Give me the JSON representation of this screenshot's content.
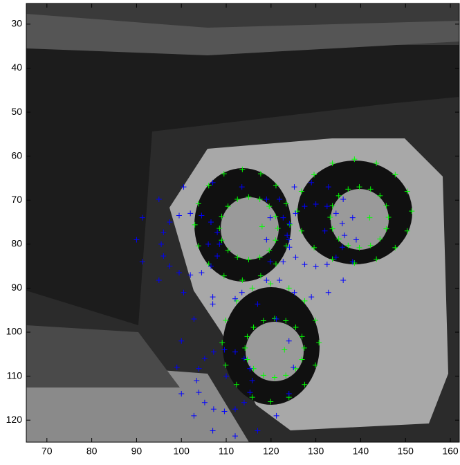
{
  "chart_data": {
    "type": "scatter",
    "marker": "+",
    "y_reversed": true,
    "xlim": [
      65.4,
      162
    ],
    "ylim": [
      25.3,
      125
    ],
    "xticks": [
      70,
      80,
      90,
      100,
      110,
      120,
      130,
      140,
      150,
      160
    ],
    "yticks": [
      30,
      40,
      50,
      60,
      70,
      80,
      90,
      100,
      110,
      120
    ],
    "series": [
      {
        "color": "#00ff00",
        "x": [
          124.2,
          123.4,
          121.1,
          117.7,
          113.6,
          109.5,
          106.1,
          103.8,
          103.0,
          103.8,
          106.1,
          109.5,
          113.6,
          117.7,
          121.1,
          123.4
        ],
        "y": [
          75.6,
          80.4,
          84.5,
          87.2,
          88.2,
          87.2,
          84.5,
          80.4,
          75.6,
          70.8,
          66.7,
          64.0,
          63.0,
          64.0,
          66.7,
          70.8
        ]
      },
      {
        "color": "#00ff00",
        "x": [
          121.5,
          121.0,
          119.6,
          117.5,
          115.0,
          112.5,
          110.4,
          109.0,
          108.5,
          109.0,
          110.4,
          112.5,
          115.0,
          117.5,
          119.6,
          121.0
        ],
        "y": [
          76.4,
          79.1,
          81.4,
          83.0,
          83.5,
          83.0,
          81.4,
          79.1,
          76.4,
          73.7,
          71.4,
          69.8,
          69.3,
          69.8,
          71.4,
          73.7
        ]
      },
      {
        "color": "#00ff00",
        "x": [
          151.4,
          150.4,
          147.7,
          143.5,
          138.6,
          133.7,
          129.6,
          126.8,
          125.8,
          126.8,
          129.6,
          133.7,
          138.6,
          143.5,
          147.7,
          150.4
        ],
        "y": [
          72.5,
          77.0,
          80.8,
          83.4,
          84.3,
          83.4,
          80.8,
          77.0,
          72.5,
          68.0,
          64.2,
          61.6,
          60.7,
          61.6,
          64.2,
          68.0
        ]
      },
      {
        "color": "#00ff00",
        "x": [
          146.2,
          145.7,
          144.3,
          142.2,
          139.7,
          137.2,
          135.1,
          133.7,
          133.2,
          133.7,
          135.1,
          137.2,
          139.7,
          142.2,
          144.3,
          145.7
        ],
        "y": [
          73.9,
          76.5,
          78.8,
          80.3,
          80.8,
          80.3,
          78.8,
          76.5,
          73.9,
          71.3,
          69.0,
          67.5,
          67.0,
          67.5,
          69.0,
          71.3
        ]
      },
      {
        "color": "#00ff00",
        "x": [
          130.7,
          129.9,
          127.5,
          124.0,
          119.9,
          115.8,
          112.3,
          109.9,
          109.1,
          109.9,
          112.3,
          115.8,
          119.9,
          124.0,
          127.5,
          129.9
        ],
        "y": [
          102.4,
          107.5,
          111.9,
          114.8,
          115.8,
          114.8,
          111.9,
          107.5,
          102.4,
          97.3,
          92.9,
          90.0,
          89.0,
          90.0,
          92.9,
          97.3
        ]
      },
      {
        "color": "#00ff00",
        "x": [
          127.4,
          126.9,
          125.5,
          123.3,
          120.8,
          118.3,
          116.1,
          114.7,
          114.2,
          114.7,
          116.1,
          118.3,
          120.8,
          123.3,
          125.5,
          126.9
        ],
        "y": [
          103.6,
          106.2,
          108.3,
          109.8,
          110.3,
          109.8,
          108.3,
          106.2,
          103.6,
          101.0,
          98.9,
          97.4,
          96.9,
          97.4,
          98.9,
          101.0
        ]
      },
      {
        "color": "#00ff00",
        "x": [
          118,
          142,
          123
        ],
        "y": [
          76,
          74,
          104
        ]
      },
      {
        "color": "#0000ff",
        "x": [
          124.0,
          122.7,
          119.0,
          113.5,
          107.0,
          100.5,
          95.0,
          91.3,
          90.0,
          91.3,
          95.0,
          100.5,
          107.0,
          113.5,
          119.0,
          122.7
        ],
        "y": [
          79.0,
          84.0,
          88.2,
          91.0,
          92.0,
          91.0,
          88.2,
          84.0,
          79.0,
          74.0,
          69.8,
          67.0,
          66.0,
          67.0,
          69.8,
          74.0
        ]
      },
      {
        "color": "#0000ff",
        "x": [
          108.5,
          108.0,
          106.6,
          104.5,
          102.0,
          99.5,
          97.4,
          96.0,
          95.5,
          96.0,
          97.4,
          99.5,
          102.0,
          104.5,
          106.6,
          108.0
        ],
        "y": [
          80.0,
          82.7,
          85.0,
          86.5,
          87.0,
          86.5,
          85.0,
          82.7,
          80.0,
          77.3,
          75.0,
          73.5,
          73.0,
          73.5,
          75.0,
          77.3
        ]
      },
      {
        "color": "#0000ff",
        "x": [
          139.0,
          138.2,
          136.1,
          132.8,
          129.0,
          125.2,
          121.9,
          119.8,
          119.0,
          119.8,
          121.9,
          125.2,
          129.0,
          132.8,
          136.1,
          138.2
        ],
        "y": [
          79.0,
          84.0,
          88.2,
          91.0,
          92.0,
          91.0,
          88.2,
          84.0,
          79.0,
          74.0,
          69.8,
          67.0,
          66.0,
          67.0,
          69.8,
          74.0
        ]
      },
      {
        "color": "#0000ff",
        "x": [
          136.4,
          135.9,
          134.5,
          132.5,
          130.0,
          127.5,
          125.5,
          124.1,
          123.6,
          124.1,
          125.5,
          127.5,
          130.0,
          132.5,
          134.5,
          135.9
        ],
        "y": [
          78.0,
          80.7,
          83.0,
          84.6,
          85.1,
          84.6,
          83.0,
          80.7,
          78.0,
          75.3,
          73.0,
          71.4,
          70.9,
          71.4,
          73.0,
          75.3
        ]
      },
      {
        "color": "#0000ff",
        "x": [
          125.0,
          124.0,
          121.2,
          117.0,
          112.0,
          107.0,
          102.8,
          100.0,
          99.0,
          100.0,
          102.8,
          107.0,
          112.0,
          117.0,
          121.2,
          124.0
        ],
        "y": [
          108.0,
          114.0,
          119.0,
          122.4,
          123.6,
          122.4,
          119.0,
          114.0,
          108.0,
          102.0,
          97.0,
          93.6,
          92.4,
          93.6,
          97.0,
          102.0
        ]
      },
      {
        "color": "#0000ff",
        "x": [
          115.8,
          115.3,
          114.0,
          112.0,
          109.6,
          107.2,
          105.2,
          103.9,
          103.4,
          103.9,
          105.2,
          107.2,
          109.6,
          112.0,
          114.0,
          115.3
        ],
        "y": [
          111.0,
          113.7,
          116.0,
          117.5,
          118.0,
          117.5,
          116.0,
          113.7,
          111.0,
          108.3,
          106.0,
          104.5,
          104.0,
          104.5,
          106.0,
          108.3
        ]
      },
      {
        "color": "#0000ff",
        "x": [
          106,
          132,
          110
        ],
        "y": [
          80,
          77,
          110
        ]
      }
    ]
  }
}
